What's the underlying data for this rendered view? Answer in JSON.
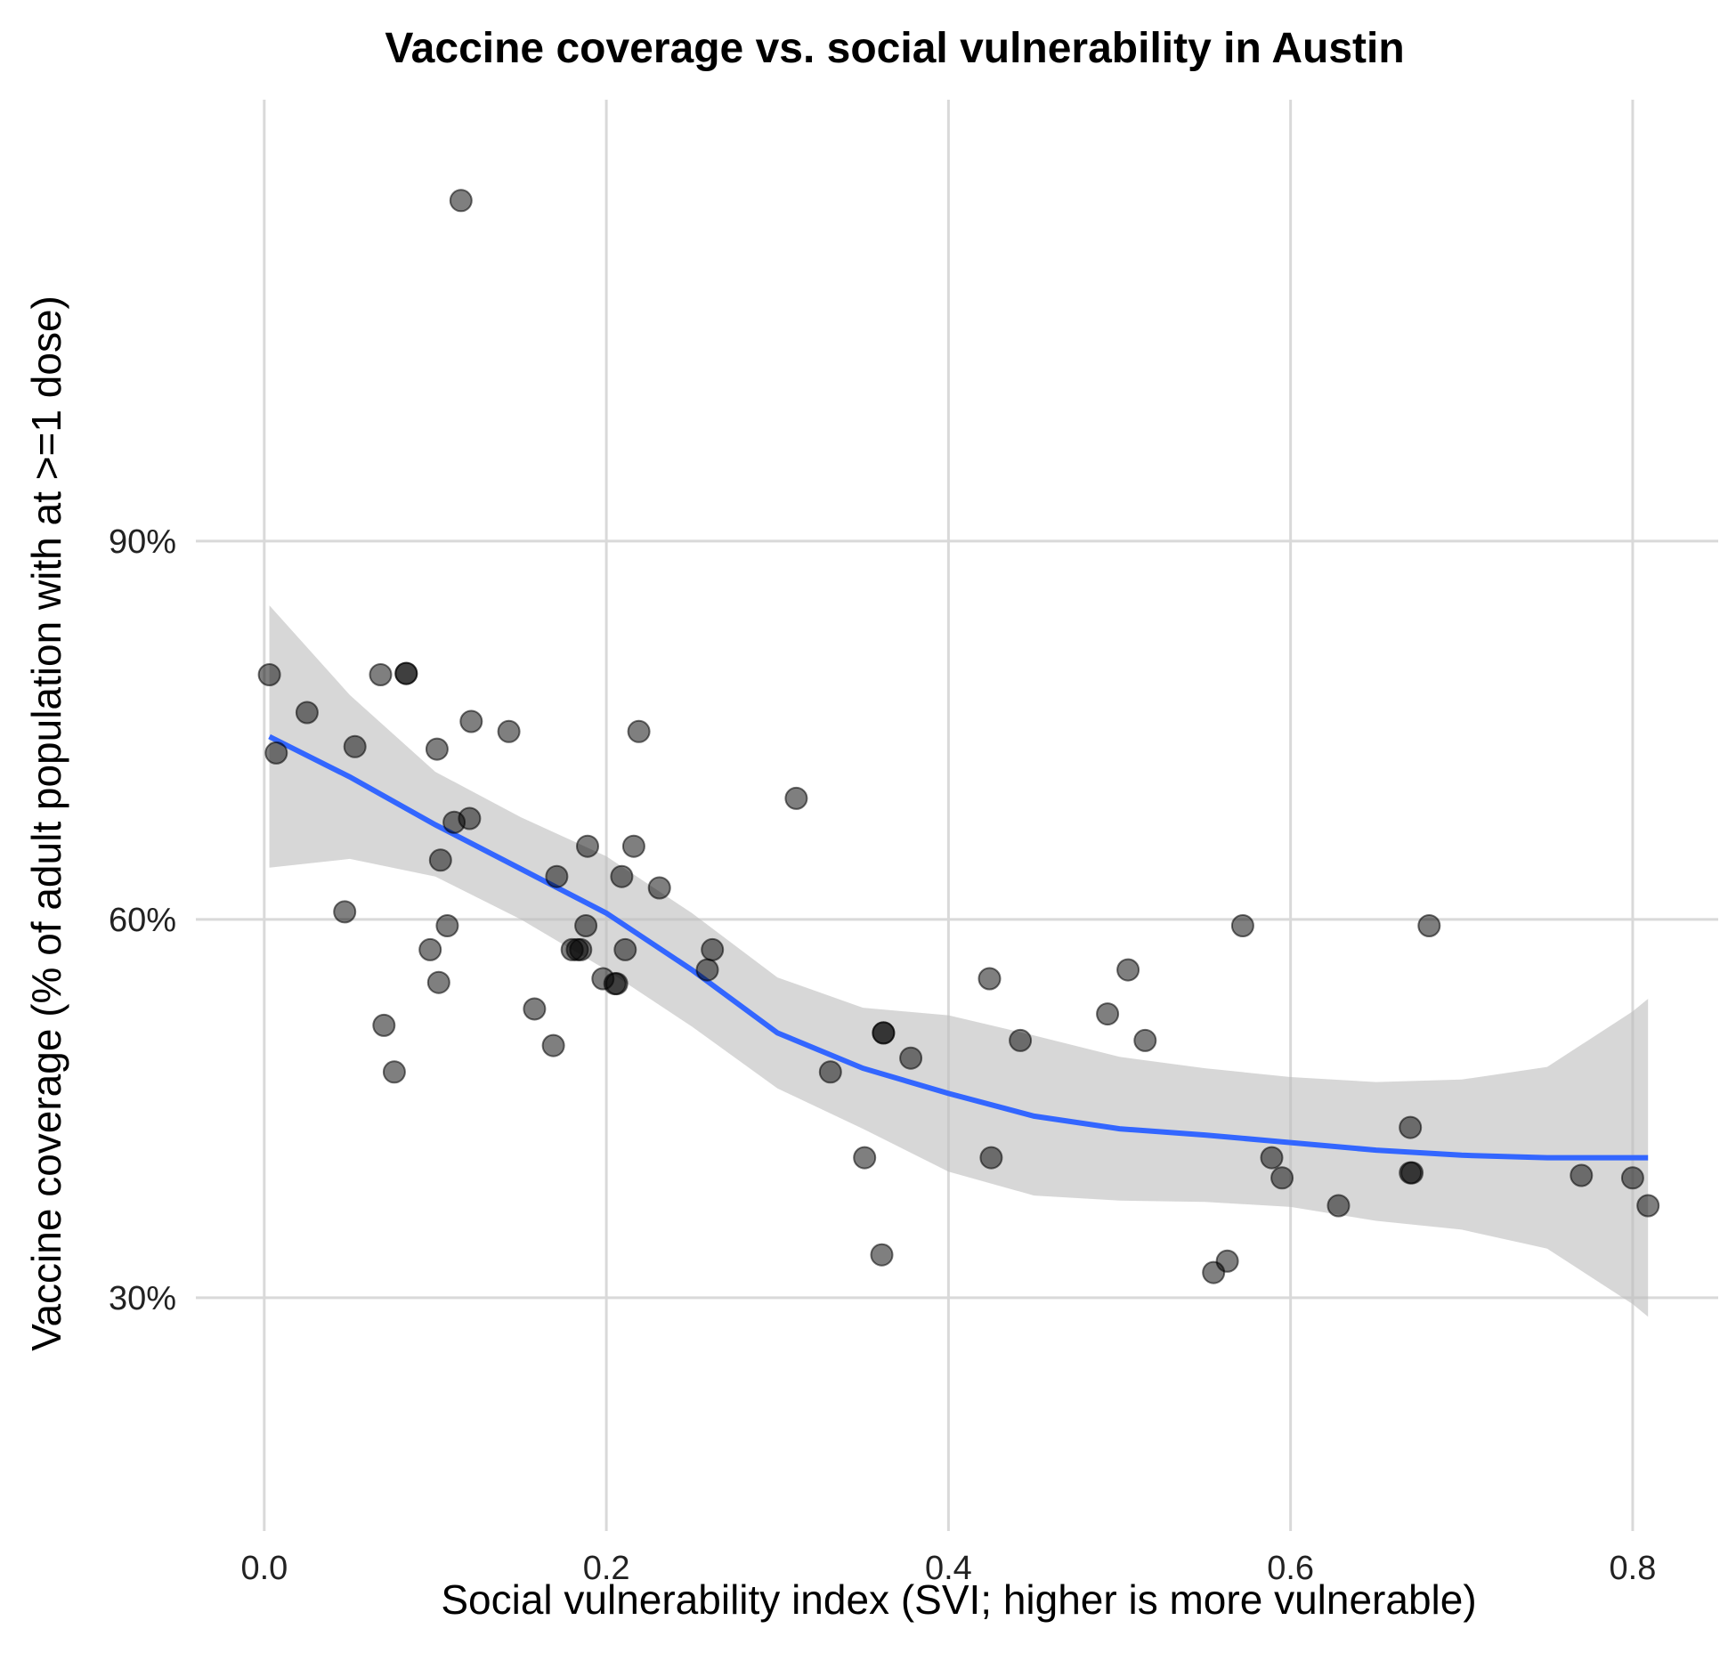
{
  "chart_data": {
    "type": "scatter",
    "title": "Vaccine coverage vs. social vulnerability in Austin",
    "xlabel": "Social vulnerability index (SVI; higher is more vulnerable)",
    "ylabel": "Vaccine coverage (% of adult population with at >=1 dose)",
    "xlim": [
      -0.04,
      0.85
    ],
    "ylim": [
      0.115,
      1.25
    ],
    "x_ticks": [
      0.0,
      0.2,
      0.4,
      0.6,
      0.8
    ],
    "x_tick_labels": [
      "0.0",
      "0.2",
      "0.4",
      "0.6",
      "0.8"
    ],
    "y_ticks": [
      0.3,
      0.6,
      0.9
    ],
    "y_tick_labels": [
      "30%",
      "60%",
      "90%"
    ],
    "grid": true,
    "legend": "none",
    "colors": {
      "points": "#000000",
      "smooth_line": "#3366ff",
      "ribbon": "#bdbdbd",
      "grid": "#d9d9d9"
    },
    "points": {
      "x": [
        0.003,
        0.007,
        0.025,
        0.047,
        0.053,
        0.068,
        0.07,
        0.076,
        0.083,
        0.083,
        0.097,
        0.101,
        0.102,
        0.103,
        0.107,
        0.111,
        0.115,
        0.12,
        0.121,
        0.143,
        0.158,
        0.169,
        0.171,
        0.18,
        0.183,
        0.185,
        0.188,
        0.189,
        0.198,
        0.205,
        0.206,
        0.209,
        0.211,
        0.216,
        0.219,
        0.231,
        0.259,
        0.262,
        0.311,
        0.331,
        0.351,
        0.361,
        0.362,
        0.362,
        0.378,
        0.424,
        0.425,
        0.442,
        0.493,
        0.505,
        0.515,
        0.555,
        0.563,
        0.572,
        0.589,
        0.595,
        0.628,
        0.67,
        0.67,
        0.671,
        0.681,
        0.77,
        0.8,
        0.809
      ],
      "y": [
        0.794,
        0.732,
        0.764,
        0.606,
        0.737,
        0.794,
        0.516,
        0.479,
        0.795,
        0.795,
        0.576,
        0.735,
        0.55,
        0.647,
        0.595,
        0.677,
        1.17,
        0.68,
        0.757,
        0.749,
        0.529,
        0.5,
        0.634,
        0.576,
        0.576,
        0.576,
        0.595,
        0.658,
        0.553,
        0.549,
        0.549,
        0.634,
        0.576,
        0.658,
        0.749,
        0.625,
        0.56,
        0.576,
        0.696,
        0.479,
        0.411,
        0.334,
        0.51,
        0.51,
        0.49,
        0.553,
        0.411,
        0.504,
        0.525,
        0.56,
        0.504,
        0.32,
        0.329,
        0.595,
        0.411,
        0.395,
        0.373,
        0.435,
        0.399,
        0.399,
        0.595,
        0.397,
        0.395,
        0.373
      ]
    },
    "smooth": {
      "x": [
        0.003,
        0.05,
        0.1,
        0.15,
        0.2,
        0.25,
        0.3,
        0.35,
        0.4,
        0.45,
        0.5,
        0.55,
        0.6,
        0.65,
        0.7,
        0.75,
        0.8,
        0.809
      ],
      "y": [
        0.745,
        0.713,
        0.675,
        0.64,
        0.605,
        0.56,
        0.51,
        0.482,
        0.462,
        0.444,
        0.434,
        0.429,
        0.423,
        0.417,
        0.413,
        0.411,
        0.411,
        0.411
      ],
      "lower": [
        0.641,
        0.648,
        0.634,
        0.6,
        0.56,
        0.515,
        0.466,
        0.434,
        0.4,
        0.381,
        0.377,
        0.376,
        0.372,
        0.361,
        0.354,
        0.339,
        0.295,
        0.285
      ],
      "upper": [
        0.849,
        0.778,
        0.717,
        0.681,
        0.65,
        0.605,
        0.554,
        0.53,
        0.524,
        0.508,
        0.491,
        0.482,
        0.475,
        0.471,
        0.473,
        0.483,
        0.527,
        0.537
      ]
    }
  }
}
